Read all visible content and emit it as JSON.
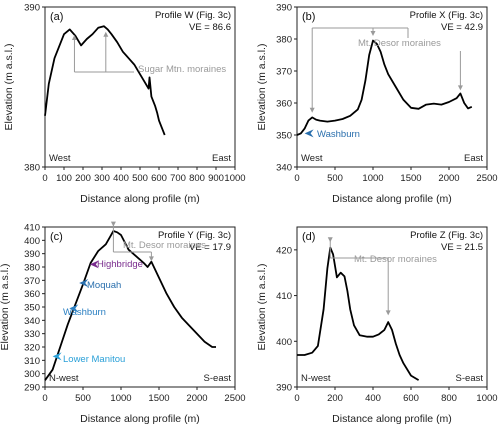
{
  "chart_data": [
    {
      "type": "line",
      "panel_label": "(a)",
      "profile_title": "Profile W",
      "profile_ref": "(Fig. 3c)",
      "ve": "VE = 86.6",
      "xlabel": "Distance along profile (m)",
      "ylabel": "Elevation (m a.s.l.)",
      "xlim": [
        0,
        1000
      ],
      "ylim": [
        380,
        390
      ],
      "xticks": [
        0,
        100,
        200,
        300,
        400,
        500,
        600,
        700,
        800,
        900,
        1000
      ],
      "yticks": [
        380,
        390
      ],
      "left_label": "West",
      "right_label": "East",
      "x": [
        0,
        20,
        50,
        80,
        100,
        130,
        160,
        190,
        220,
        250,
        280,
        310,
        330,
        350,
        380,
        410,
        440,
        470,
        500,
        520,
        545,
        550,
        560,
        580,
        590,
        600,
        620,
        630
      ],
      "y": [
        383.2,
        385.2,
        386.8,
        387.7,
        388.3,
        388.6,
        388.2,
        387.6,
        388,
        388.3,
        388.7,
        388.8,
        388.6,
        388.3,
        387.8,
        387.2,
        386.8,
        386.4,
        385.8,
        385.4,
        384.9,
        385.6,
        384.4,
        383.8,
        383.4,
        382.9,
        382.3,
        382.0
      ],
      "annotations": [
        {
          "text": "Sugar Mtn. moraines",
          "color": "#9a9a9a",
          "points_x": [
            155,
            320
          ],
          "points_y": [
            388.5,
            388.7
          ]
        }
      ]
    },
    {
      "type": "line",
      "panel_label": "(b)",
      "profile_title": "Profile X",
      "profile_ref": "(Fig. 3c)",
      "ve": "VE = 42.9",
      "xlabel": "Distance along profile (m)",
      "ylabel": "Elevation (m a.s.l.)",
      "xlim": [
        0,
        2500
      ],
      "ylim": [
        340,
        390
      ],
      "xticks": [
        0,
        500,
        1000,
        1500,
        2000,
        2500
      ],
      "yticks": [
        340,
        350,
        360,
        370,
        380,
        390
      ],
      "left_label": "West",
      "right_label": "East",
      "x": [
        0,
        50,
        100,
        150,
        200,
        250,
        300,
        400,
        500,
        600,
        700,
        800,
        850,
        900,
        950,
        1000,
        1050,
        1100,
        1150,
        1200,
        1300,
        1400,
        1500,
        1600,
        1700,
        1800,
        1900,
        2000,
        2100,
        2150,
        2200,
        2250,
        2300
      ],
      "y": [
        350,
        350.5,
        352,
        354.5,
        355.5,
        354.8,
        354.5,
        354.2,
        354.5,
        355,
        356,
        358,
        361,
        367,
        375,
        379.5,
        378.5,
        376,
        372,
        369,
        365,
        361,
        358.5,
        358.2,
        359.5,
        359.8,
        359.5,
        360.3,
        361.5,
        363,
        360,
        358.3,
        358.8
      ],
      "annotations": [
        {
          "text": "Mt. Desor moraines",
          "color": "#9a9a9a",
          "points_x": [
            200,
            1000,
            2150
          ],
          "points_y": [
            356,
            380,
            363
          ]
        },
        {
          "text": "Washburn",
          "color": "#2a6fad",
          "points_x": [
            100
          ],
          "points_y": [
            350.5
          ]
        }
      ]
    },
    {
      "type": "line",
      "panel_label": "(c)",
      "profile_title": "Profile Y",
      "profile_ref": "(Fig. 3c)",
      "ve": "VE = 17.9",
      "xlabel": "Distance along profile (m)",
      "ylabel": "Elevation (m a.s.l.)",
      "xlim": [
        0,
        2500
      ],
      "ylim": [
        290,
        410
      ],
      "xticks": [
        0,
        500,
        1000,
        1500,
        2000,
        2500
      ],
      "yticks": [
        290,
        300,
        310,
        320,
        330,
        340,
        350,
        360,
        370,
        380,
        390,
        400,
        410
      ],
      "left_label": "N-west",
      "right_label": "S-east",
      "x": [
        0,
        100,
        200,
        300,
        400,
        500,
        600,
        700,
        800,
        850,
        900,
        950,
        1000,
        1100,
        1200,
        1300,
        1350,
        1400,
        1500,
        1600,
        1700,
        1800,
        1900,
        2000,
        2100,
        2200,
        2250
      ],
      "y": [
        295,
        303,
        320,
        337,
        352,
        367,
        383,
        392,
        397,
        402,
        407,
        406,
        404,
        393,
        388,
        383,
        380,
        384,
        372,
        360,
        350,
        342,
        336,
        330,
        324,
        320,
        320
      ],
      "annotations": [
        {
          "text": "Mt. Desor moraines",
          "color": "#9a9a9a",
          "points_x": [
            900,
            1400
          ],
          "points_y": [
            408,
            382
          ]
        },
        {
          "text": "Highbridge",
          "color": "#7a2d8e",
          "points_x": [
            590
          ],
          "points_y": [
            382
          ]
        },
        {
          "text": "Moquah",
          "color": "#2a6fad",
          "points_x": [
            450
          ],
          "points_y": [
            368
          ]
        },
        {
          "text": "Washburn",
          "color": "#2a7fc2",
          "points_x": [
            320
          ],
          "points_y": [
            349
          ]
        },
        {
          "text": "Lower Manitou",
          "color": "#2aa0d8",
          "points_x": [
            100
          ],
          "points_y": [
            313
          ]
        }
      ]
    },
    {
      "type": "line",
      "panel_label": "(d)",
      "profile_title": "Profile Z",
      "profile_ref": "(Fig. 3c)",
      "ve": "VE = 21.5",
      "xlabel": "Distance along profile (m)",
      "ylabel": "Elevation (m a.s.l.)",
      "xlim": [
        0,
        1000
      ],
      "ylim": [
        390,
        425
      ],
      "xticks": [
        0,
        200,
        400,
        600,
        800,
        1000
      ],
      "yticks": [
        390,
        400,
        410,
        420
      ],
      "left_label": "N-west",
      "right_label": "S-east",
      "x": [
        0,
        40,
        80,
        110,
        140,
        160,
        175,
        190,
        210,
        230,
        250,
        265,
        280,
        300,
        330,
        370,
        400,
        430,
        460,
        480,
        500,
        520,
        540,
        560,
        600,
        640
      ],
      "y": [
        397,
        397,
        397.5,
        399,
        407,
        416,
        420.5,
        419,
        414,
        415,
        414.2,
        411,
        407,
        403.5,
        401.3,
        401,
        401,
        401.5,
        402.5,
        404.2,
        402.5,
        399.5,
        397,
        395.2,
        392.5,
        391.5
      ],
      "annotations": [
        {
          "text": "Mt. Desor moraines",
          "color": "#9a9a9a",
          "points_x": [
            175,
            480
          ],
          "points_y": [
            421,
            405
          ]
        }
      ]
    }
  ]
}
